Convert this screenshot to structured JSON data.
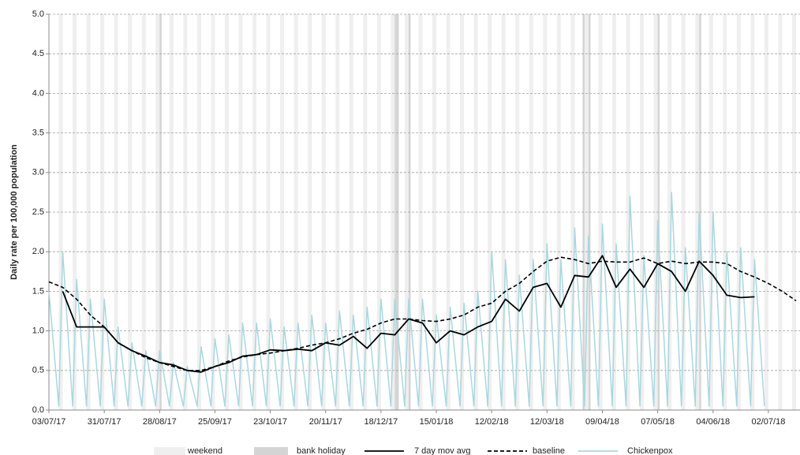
{
  "chart_data": {
    "type": "line",
    "y_label": "Daily rate per 100,000 population",
    "xlim": [
      "03/07/17",
      "18/07/18"
    ],
    "xticks": [
      "03/07/17",
      "31/07/17",
      "28/08/17",
      "25/09/17",
      "23/10/17",
      "20/11/17",
      "18/12/17",
      "15/01/18",
      "12/02/18",
      "12/03/18",
      "09/04/18",
      "07/05/18",
      "04/06/18",
      "02/07/18"
    ],
    "ylim": [
      0,
      5
    ],
    "yticks": [
      {
        "value": 0,
        "label": "0.0"
      },
      {
        "value": 0.5,
        "label": "0.5"
      },
      {
        "value": 1,
        "label": "1.0"
      },
      {
        "value": 1.5,
        "label": "1.5"
      },
      {
        "value": 2,
        "label": "2.0"
      },
      {
        "value": 2.5,
        "label": "2.5"
      },
      {
        "value": 3,
        "label": "3.0"
      },
      {
        "value": 3.5,
        "label": "3.5"
      },
      {
        "value": 4,
        "label": "4.0"
      },
      {
        "value": 4.5,
        "label": "4.5"
      },
      {
        "value": 5,
        "label": "5.0"
      }
    ],
    "grid": true,
    "weekend": {
      "name": "weekend",
      "color": "#efefef"
    },
    "bank_holiday": {
      "name": "bank holiday",
      "color": "#d4d4d4",
      "dates": [
        "28/08/17",
        "25/12/17",
        "26/12/17",
        "01/01/18",
        "30/03/18",
        "02/04/18",
        "07/05/18",
        "28/05/18"
      ]
    },
    "x": [
      "03/07/17",
      "10/07/17",
      "17/07/17",
      "24/07/17",
      "31/07/17",
      "07/08/17",
      "14/08/17",
      "21/08/17",
      "28/08/17",
      "04/09/17",
      "11/09/17",
      "18/09/17",
      "25/09/17",
      "02/10/17",
      "09/10/17",
      "16/10/17",
      "23/10/17",
      "30/10/17",
      "06/11/17",
      "13/11/17",
      "20/11/17",
      "27/11/17",
      "04/12/17",
      "11/12/17",
      "18/12/17",
      "25/12/17",
      "01/01/18",
      "08/01/18",
      "15/01/18",
      "22/01/18",
      "29/01/18",
      "05/02/18",
      "12/02/18",
      "19/02/18",
      "26/02/18",
      "05/03/18",
      "12/03/18",
      "19/03/18",
      "26/03/18",
      "02/04/18",
      "09/04/18",
      "16/04/18",
      "23/04/18",
      "30/04/18",
      "07/05/18",
      "14/05/18",
      "21/05/18",
      "28/05/18",
      "04/06/18",
      "11/06/18",
      "18/06/18",
      "25/06/18",
      "02/07/18",
      "09/07/18",
      "16/07/18"
    ],
    "series": [
      {
        "name": "Chickenpox",
        "color": "#a9d7df",
        "style": "solid",
        "x": [
          "03/07/17",
          "08/07/17",
          "10/07/17",
          "15/07/17",
          "17/07/17",
          "22/07/17",
          "24/07/17",
          "29/07/17",
          "31/07/17",
          "05/08/17",
          "07/08/17",
          "12/08/17",
          "14/08/17",
          "19/08/17",
          "21/08/17",
          "26/08/17",
          "28/08/17",
          "02/09/17",
          "04/09/17",
          "09/09/17",
          "11/09/17",
          "16/09/17",
          "18/09/17",
          "23/09/17",
          "25/09/17",
          "30/09/17",
          "02/10/17",
          "07/10/17",
          "09/10/17",
          "14/10/17",
          "16/10/17",
          "21/10/17",
          "23/10/17",
          "28/10/17",
          "30/10/17",
          "04/11/17",
          "06/11/17",
          "11/11/17",
          "13/11/17",
          "18/11/17",
          "20/11/17",
          "25/11/17",
          "27/11/17",
          "02/12/17",
          "04/12/17",
          "09/12/17",
          "11/12/17",
          "16/12/17",
          "18/12/17",
          "23/12/17",
          "25/12/17",
          "30/12/17",
          "01/01/18",
          "06/01/18",
          "08/01/18",
          "13/01/18",
          "15/01/18",
          "20/01/18",
          "22/01/18",
          "27/01/18",
          "29/01/18",
          "03/02/18",
          "05/02/18",
          "10/02/18",
          "12/02/18",
          "17/02/18",
          "19/02/18",
          "24/02/18",
          "26/02/18",
          "03/03/18",
          "05/03/18",
          "10/03/18",
          "12/03/18",
          "17/03/18",
          "19/03/18",
          "24/03/18",
          "26/03/18",
          "31/03/18",
          "02/04/18",
          "07/04/18",
          "09/04/18",
          "14/04/18",
          "16/04/18",
          "21/04/18",
          "23/04/18",
          "28/04/18",
          "30/04/18",
          "05/05/18",
          "07/05/18",
          "12/05/18",
          "14/05/18",
          "19/05/18",
          "21/05/18",
          "26/05/18",
          "28/05/18",
          "02/06/18",
          "04/06/18",
          "09/06/18",
          "11/06/18",
          "16/06/18",
          "18/06/18",
          "23/06/18",
          "25/06/18",
          "30/06/18"
        ],
        "values": [
          1.5,
          0.05,
          2.0,
          0.05,
          1.65,
          0.05,
          1.4,
          0.05,
          1.4,
          0.05,
          1.05,
          0.05,
          0.85,
          0.05,
          0.75,
          0.05,
          0.75,
          0.05,
          0.6,
          0.05,
          0.55,
          0.05,
          0.8,
          0.05,
          0.9,
          0.05,
          0.95,
          0.05,
          1.1,
          0.05,
          1.1,
          0.05,
          1.15,
          0.05,
          1.05,
          0.05,
          1.1,
          0.05,
          1.2,
          0.05,
          1.1,
          0.05,
          1.25,
          0.05,
          1.2,
          0.05,
          1.3,
          0.05,
          1.4,
          0.05,
          1.4,
          0.05,
          1.4,
          0.05,
          1.4,
          0.05,
          1.2,
          0.05,
          1.3,
          0.05,
          1.35,
          0.05,
          1.5,
          0.05,
          2.0,
          0.05,
          1.9,
          0.05,
          1.7,
          0.05,
          1.9,
          0.05,
          2.1,
          0.05,
          1.9,
          0.05,
          2.3,
          0.05,
          2.2,
          0.05,
          2.35,
          0.05,
          2.1,
          0.05,
          2.7,
          0.05,
          1.95,
          0.05,
          2.4,
          0.05,
          2.75,
          0.05,
          2.05,
          0.05,
          2.5,
          0.05,
          2.5,
          0.05,
          2.0,
          0.05,
          2.05,
          0.05,
          1.9,
          0.05
        ]
      },
      {
        "name": "7 day mov avg",
        "color": "#000000",
        "style": "solid",
        "values": [
          null,
          1.5,
          1.05,
          1.05,
          1.05,
          0.85,
          0.75,
          0.68,
          0.6,
          0.57,
          0.5,
          0.48,
          0.55,
          0.6,
          0.68,
          0.7,
          0.76,
          0.75,
          0.77,
          0.75,
          0.85,
          0.82,
          0.93,
          0.78,
          0.97,
          0.95,
          1.15,
          1.1,
          0.85,
          1.0,
          0.95,
          1.05,
          1.12,
          1.4,
          1.25,
          1.55,
          1.6,
          1.3,
          1.7,
          1.68,
          1.95,
          1.55,
          1.78,
          1.55,
          1.85,
          1.75,
          1.5,
          1.88,
          1.7,
          1.45,
          1.42,
          1.43,
          null,
          null,
          null
        ]
      },
      {
        "name": "baseline",
        "color": "#000000",
        "style": "dashed",
        "values": [
          1.62,
          1.55,
          1.4,
          1.2,
          1.05,
          0.85,
          0.75,
          0.66,
          0.6,
          0.55,
          0.5,
          0.5,
          0.55,
          0.62,
          0.67,
          0.7,
          0.72,
          0.75,
          0.78,
          0.82,
          0.85,
          0.9,
          0.97,
          1.02,
          1.1,
          1.15,
          1.15,
          1.13,
          1.12,
          1.15,
          1.2,
          1.3,
          1.35,
          1.5,
          1.6,
          1.75,
          1.88,
          1.93,
          1.9,
          1.85,
          1.88,
          1.87,
          1.87,
          1.92,
          1.85,
          1.88,
          1.85,
          1.87,
          1.87,
          1.85,
          1.75,
          1.68,
          1.6,
          1.5,
          1.38
        ]
      }
    ]
  }
}
